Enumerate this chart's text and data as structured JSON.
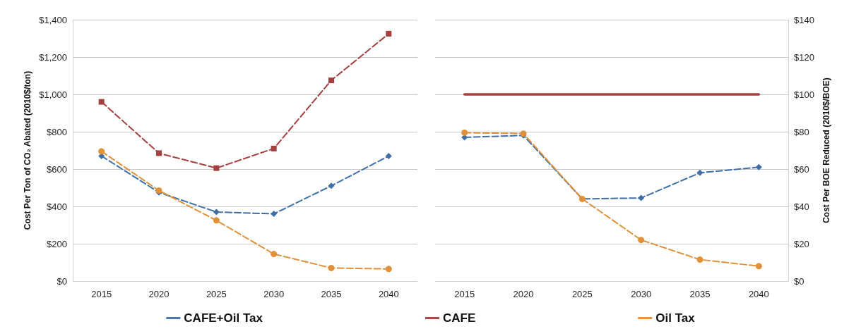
{
  "chart_data": [
    {
      "type": "line",
      "categories": [
        "2015",
        "2020",
        "2025",
        "2030",
        "2035",
        "2040"
      ],
      "ylabel": "Cost Per Ton of CO₂ Abated (2010$/ton)",
      "ylim": [
        0,
        1400
      ],
      "yticks": [
        {
          "value": 0,
          "label": "$0"
        },
        {
          "value": 200,
          "label": "$200"
        },
        {
          "value": 400,
          "label": "$400"
        },
        {
          "value": 600,
          "label": "$600"
        },
        {
          "value": 800,
          "label": "$800"
        },
        {
          "value": 1000,
          "label": "$1,000"
        },
        {
          "value": 1200,
          "label": "$1,200"
        },
        {
          "value": 1400,
          "label": "$1,400"
        }
      ],
      "grid": "y",
      "legend": "bottom",
      "series": [
        {
          "name": "CAFE+Oil Tax",
          "color": "#3f6fa8",
          "marker": "diamond",
          "line_style": "dashed",
          "values": [
            670,
            475,
            370,
            360,
            510,
            670
          ]
        },
        {
          "name": "CAFE",
          "color": "#a5403e",
          "marker": "square",
          "line_style": "dashed",
          "values": [
            960,
            685,
            605,
            710,
            1075,
            1325
          ]
        },
        {
          "name": "Oil Tax",
          "color": "#e0913a",
          "marker": "circle",
          "line_style": "dashed",
          "values": [
            695,
            485,
            325,
            145,
            70,
            65
          ]
        }
      ]
    },
    {
      "type": "line",
      "categories": [
        "2015",
        "2020",
        "2025",
        "2030",
        "2035",
        "2040"
      ],
      "y2label": "Cost Per BOE Reduced (2010$/BOE)",
      "y2lim": [
        0,
        140
      ],
      "y2ticks": [
        {
          "value": 0,
          "label": "$0"
        },
        {
          "value": 20,
          "label": "$20"
        },
        {
          "value": 40,
          "label": "$40"
        },
        {
          "value": 60,
          "label": "$60"
        },
        {
          "value": 80,
          "label": "$80"
        },
        {
          "value": 100,
          "label": "$100"
        },
        {
          "value": 120,
          "label": "$120"
        },
        {
          "value": 140,
          "label": "$140"
        }
      ],
      "grid": "y",
      "series": [
        {
          "axis": "y2",
          "color": "#3f6fa8",
          "marker": "diamond",
          "line_style": "dashed",
          "values": [
            77,
            78,
            44,
            44.5,
            58,
            61
          ]
        },
        {
          "axis": "y2",
          "color": "#a5403e",
          "marker": "none",
          "line_style": "solid",
          "values": [
            100,
            100,
            100,
            100,
            100,
            100
          ]
        },
        {
          "axis": "y2",
          "color": "#e0913a",
          "marker": "circle",
          "line_style": "dashed",
          "values": [
            79.5,
            79,
            44,
            22,
            11.5,
            8
          ]
        }
      ]
    }
  ]
}
